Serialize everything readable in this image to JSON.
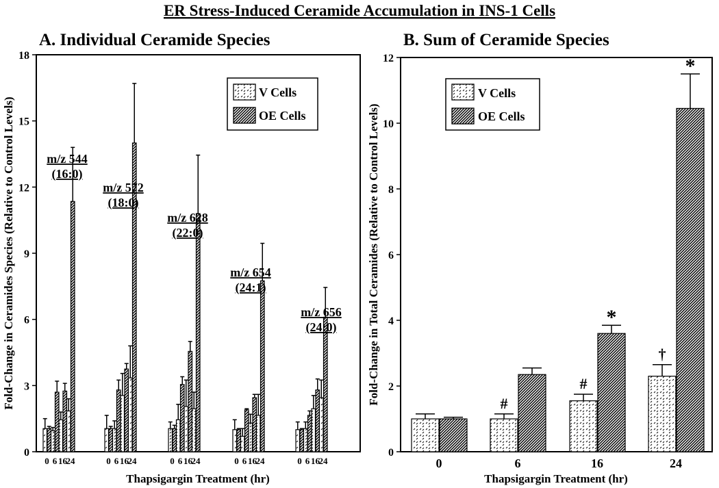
{
  "figure": {
    "title": "ER Stress-Induced Ceramide Accumulation in INS-1 Cells"
  },
  "chart_data": [
    {
      "type": "bar",
      "panel_title": "A.  Individual Ceramide Species",
      "ylabel": "Fold-Change in Ceramides Species (Relative to Control Levels)",
      "xlabel": "Thapsigargin Treatment (hr)",
      "ylim": [
        0,
        18
      ],
      "yticks": [
        0,
        3,
        6,
        9,
        12,
        15,
        18
      ],
      "legend": {
        "position": "top-right",
        "entries": [
          "V Cells",
          "OE Cells"
        ]
      },
      "groups": [
        {
          "label_line1": "m/z 544",
          "label_line2": "(16:0)",
          "categories": [
            "0",
            "6",
            "16",
            "24"
          ],
          "series": [
            {
              "name": "V Cells",
              "values": [
                1.05,
                0.95,
                1.45,
                1.85
              ],
              "errors": [
                0.45,
                0.15,
                0.35,
                0.55
              ]
            },
            {
              "name": "OE Cells",
              "values": [
                1.05,
                2.7,
                2.75,
                11.35
              ],
              "errors": [
                0.1,
                0.5,
                0.35,
                2.45
              ]
            }
          ]
        },
        {
          "label_line1": "m/z 572",
          "label_line2": "(18:0)",
          "categories": [
            "0",
            "6",
            "16",
            "24"
          ],
          "series": [
            {
              "name": "V Cells",
              "values": [
                1.05,
                1.05,
                2.55,
                3.35
              ],
              "errors": [
                0.6,
                0.35,
                1.0,
                1.45
              ]
            },
            {
              "name": "OE Cells",
              "values": [
                1.05,
                2.8,
                3.75,
                14.0
              ],
              "errors": [
                0.1,
                0.45,
                0.25,
                2.7
              ]
            }
          ]
        },
        {
          "label_line1": "m/z 628",
          "label_line2": "(22:0)",
          "categories": [
            "0",
            "6",
            "16",
            "24"
          ],
          "series": [
            {
              "name": "V Cells",
              "values": [
                1.05,
                1.45,
                2.05,
                1.95
              ],
              "errors": [
                0.3,
                0.7,
                1.2,
                0.75
              ]
            },
            {
              "name": "OE Cells",
              "values": [
                1.05,
                3.05,
                4.55,
                10.8
              ],
              "errors": [
                0.15,
                0.35,
                0.45,
                2.65
              ]
            }
          ]
        },
        {
          "label_line1": "m/z 654",
          "label_line2": "(24:1)",
          "categories": [
            "0",
            "6",
            "16",
            "24"
          ],
          "series": [
            {
              "name": "V Cells",
              "values": [
                1.0,
                0.7,
                1.3,
                1.65
              ],
              "errors": [
                0.45,
                0.35,
                0.4,
                0.95
              ]
            },
            {
              "name": "OE Cells",
              "values": [
                1.0,
                1.9,
                2.45,
                7.75
              ],
              "errors": [
                0.05,
                0.05,
                0.15,
                1.7
              ]
            }
          ]
        },
        {
          "label_line1": "m/z 656",
          "label_line2": "(24:0)",
          "categories": [
            "0",
            "6",
            "16",
            "24"
          ],
          "series": [
            {
              "name": "V Cells",
              "values": [
                1.0,
                1.05,
                1.95,
                2.45
              ],
              "errors": [
                0.35,
                0.3,
                0.6,
                0.8
              ]
            },
            {
              "name": "OE Cells",
              "values": [
                1.0,
                1.65,
                2.8,
                6.1
              ],
              "errors": [
                0.05,
                0.2,
                0.5,
                1.35
              ]
            }
          ]
        }
      ]
    },
    {
      "type": "bar",
      "panel_title": "B.  Sum of Ceramide Species",
      "ylabel": "Fold-Change in Total Ceramides (Relative to Control Levels)",
      "xlabel": "Thapsigargin Treatment (hr)",
      "ylim": [
        0,
        12
      ],
      "yticks": [
        0,
        2,
        4,
        6,
        8,
        10,
        12
      ],
      "legend": {
        "position": "top-left",
        "entries": [
          "V Cells",
          "OE Cells"
        ]
      },
      "categories": [
        "0",
        "6",
        "16",
        "24"
      ],
      "series": [
        {
          "name": "V Cells",
          "values": [
            1.0,
            1.0,
            1.55,
            2.3
          ],
          "errors": [
            0.15,
            0.15,
            0.2,
            0.35
          ]
        },
        {
          "name": "OE Cells",
          "values": [
            1.0,
            2.35,
            3.6,
            10.45
          ],
          "errors": [
            0.05,
            0.2,
            0.25,
            1.05
          ]
        }
      ],
      "annotations": [
        {
          "text": "#",
          "category": "6",
          "series": "V Cells"
        },
        {
          "text": "#",
          "category": "16",
          "series": "V Cells"
        },
        {
          "text": "†",
          "category": "24",
          "series": "V Cells"
        },
        {
          "text": "*",
          "category": "16",
          "series": "OE Cells"
        },
        {
          "text": "*",
          "category": "24",
          "series": "OE Cells"
        }
      ]
    }
  ]
}
